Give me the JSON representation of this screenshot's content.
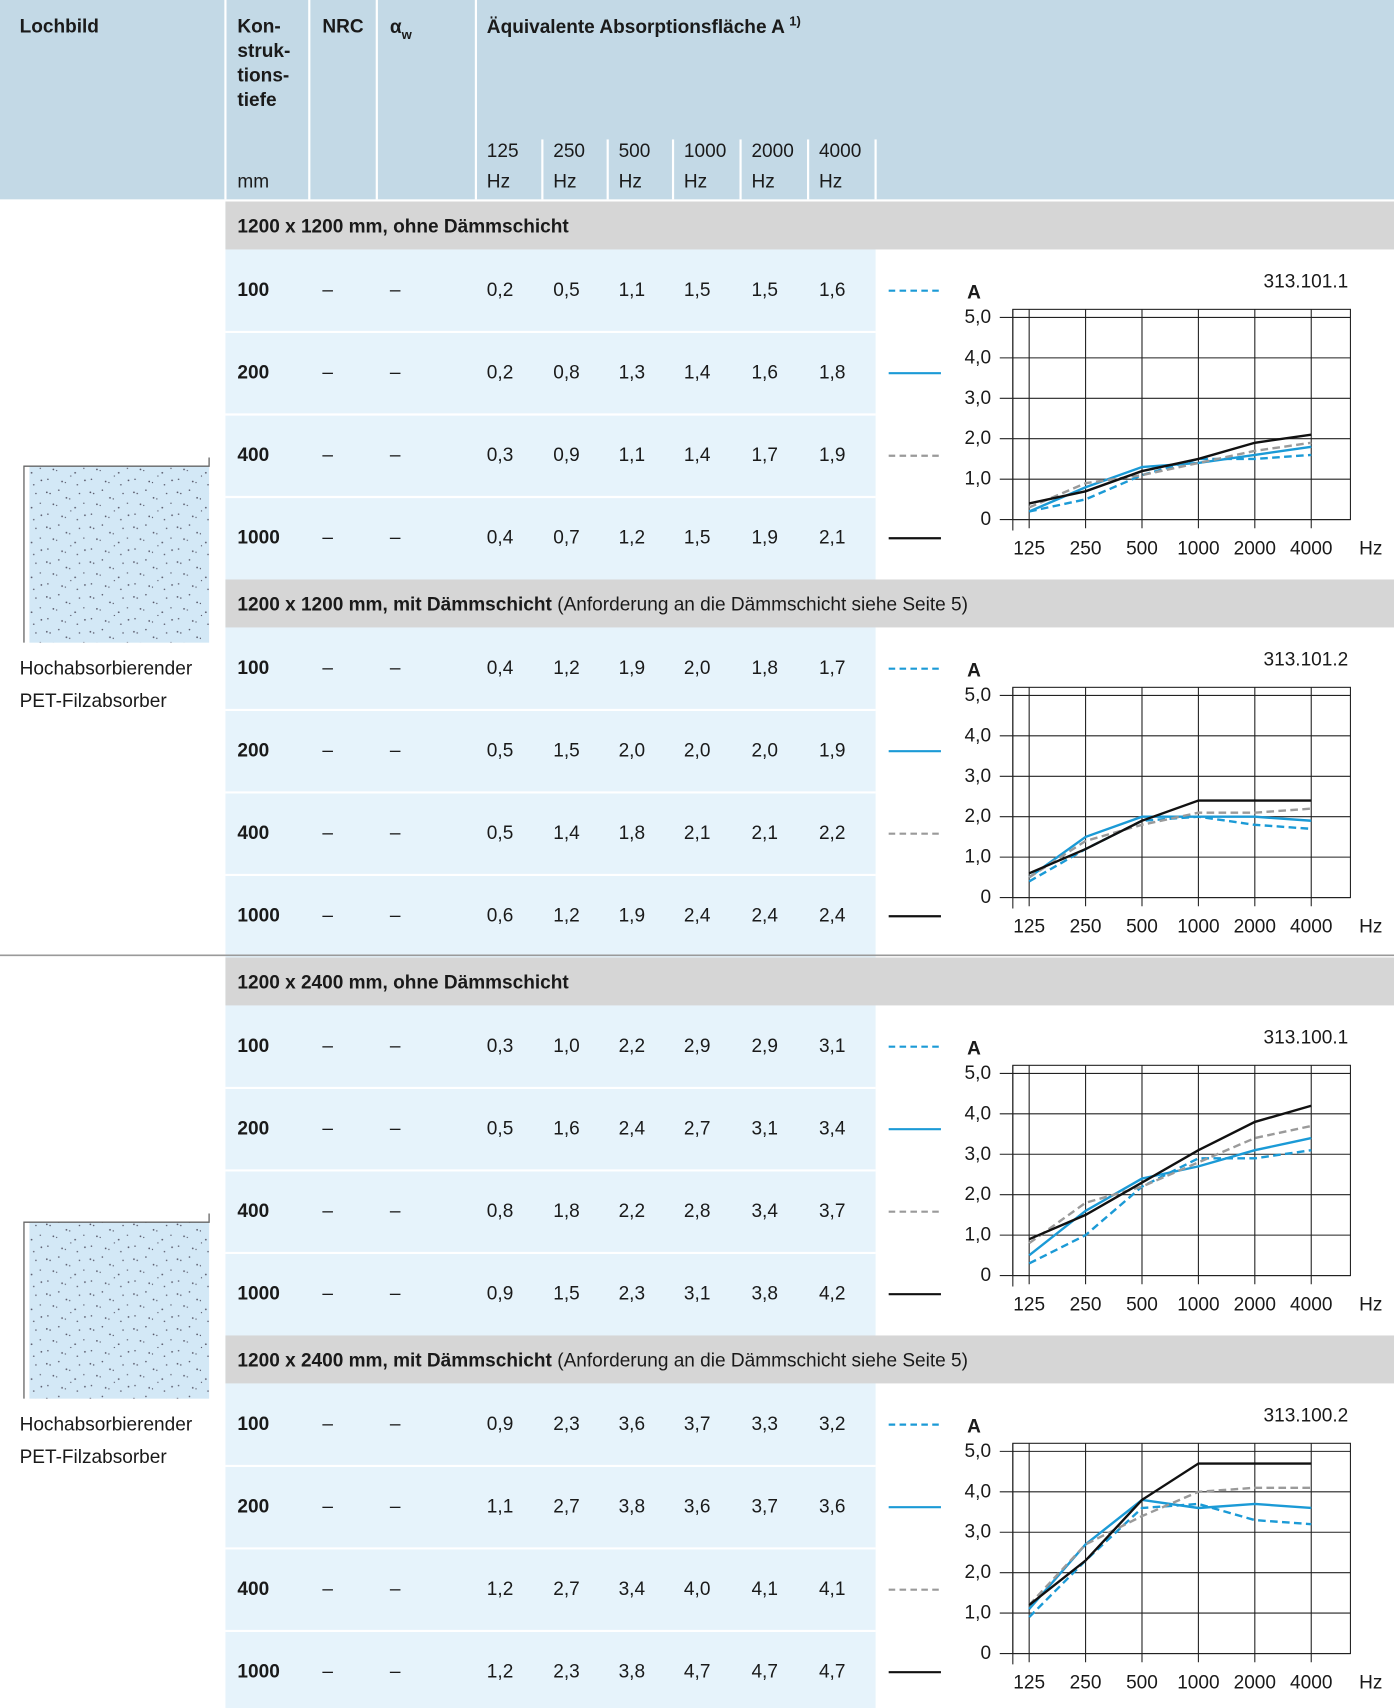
{
  "header": {
    "lochbild": "Lochbild",
    "konstruktionstiefe": [
      "Kon-",
      "struk-",
      "tions-",
      "tiefe"
    ],
    "unit": "mm",
    "nrc": "NRC",
    "alpha": "α",
    "alpha_sub": "w",
    "absorption": "Äquivalente Absorptionsfläche A",
    "absorption_note": "1)",
    "frequencies": [
      [
        "125",
        "Hz"
      ],
      [
        "250",
        "Hz"
      ],
      [
        "500",
        "Hz"
      ],
      [
        "1000",
        "Hz"
      ],
      [
        "2000",
        "Hz"
      ],
      [
        "4000",
        "Hz"
      ]
    ]
  },
  "series_styles": [
    {
      "color": "#1b9ad6",
      "dashed": true
    },
    {
      "color": "#1b9ad6",
      "dashed": false
    },
    {
      "color": "#9a9a9a",
      "dashed": true
    },
    {
      "color": "#111111",
      "dashed": false
    }
  ],
  "groups": [
    {
      "caption": [
        "Hochabsorbierender",
        "PET-Filzabsorber"
      ],
      "sections": [
        {
          "title": "1200 x 1200 mm, ohne Dämmschicht",
          "rows": [
            {
              "depth": 100,
              "nrc": "–",
              "alpha": "–",
              "values": [
                {
                  "value": 0.2,
                  "label": "0,2"
                },
                {
                  "value": 0.5,
                  "label": "0,5"
                },
                {
                  "value": 1.1,
                  "label": "1,1"
                },
                {
                  "value": 1.5,
                  "label": "1,5"
                },
                {
                  "value": 1.5,
                  "label": "1,5"
                },
                {
                  "value": 1.6,
                  "label": "1,6"
                }
              ]
            },
            {
              "depth": 200,
              "nrc": "–",
              "alpha": "–",
              "values": [
                {
                  "value": 0.2,
                  "label": "0,2"
                },
                {
                  "value": 0.8,
                  "label": "0,8"
                },
                {
                  "value": 1.3,
                  "label": "1,3"
                },
                {
                  "value": 1.4,
                  "label": "1,4"
                },
                {
                  "value": 1.6,
                  "label": "1,6"
                },
                {
                  "value": 1.8,
                  "label": "1,8"
                }
              ]
            },
            {
              "depth": 400,
              "nrc": "–",
              "alpha": "–",
              "values": [
                {
                  "value": 0.3,
                  "label": "0,3"
                },
                {
                  "value": 0.9,
                  "label": "0,9"
                },
                {
                  "value": 1.1,
                  "label": "1,1"
                },
                {
                  "value": 1.4,
                  "label": "1,4"
                },
                {
                  "value": 1.7,
                  "label": "1,7"
                },
                {
                  "value": 1.9,
                  "label": "1,9"
                }
              ]
            },
            {
              "depth": 1000,
              "nrc": "–",
              "alpha": "–",
              "values": [
                {
                  "value": 0.4,
                  "label": "0,4"
                },
                {
                  "value": 0.7,
                  "label": "0,7"
                },
                {
                  "value": 1.2,
                  "label": "1,2"
                },
                {
                  "value": 1.5,
                  "label": "1,5"
                },
                {
                  "value": 1.9,
                  "label": "1,9"
                },
                {
                  "value": 2.1,
                  "label": "2,1"
                }
              ]
            }
          ],
          "chart": {
            "type": "line",
            "id": "313.101.1",
            "y_label": "A",
            "x_unit": "Hz",
            "categories": [
              "125",
              "250",
              "500",
              "1000",
              "2000",
              "4000"
            ],
            "ylim": [
              0,
              5.2
            ],
            "yticks": [
              0,
              {
                "value": 1,
                "label": "1,0"
              },
              {
                "value": 2,
                "label": "2,0"
              },
              {
                "value": 3,
                "label": "3,0"
              },
              {
                "value": 4,
                "label": "4,0"
              },
              {
                "value": 5,
                "label": "5,0"
              }
            ],
            "grid": true
          }
        },
        {
          "title": "1200 x 1200 mm, mit Dämmschicht",
          "title_note": "(Anforderung an die Dämmschicht siehe Seite 5)",
          "rows": [
            {
              "depth": 100,
              "nrc": "–",
              "alpha": "–",
              "values": [
                {
                  "value": 0.4,
                  "label": "0,4"
                },
                {
                  "value": 1.2,
                  "label": "1,2"
                },
                {
                  "value": 1.9,
                  "label": "1,9"
                },
                {
                  "value": 2.0,
                  "label": "2,0"
                },
                {
                  "value": 1.8,
                  "label": "1,8"
                },
                {
                  "value": 1.7,
                  "label": "1,7"
                }
              ]
            },
            {
              "depth": 200,
              "nrc": "–",
              "alpha": "–",
              "values": [
                {
                  "value": 0.5,
                  "label": "0,5"
                },
                {
                  "value": 1.5,
                  "label": "1,5"
                },
                {
                  "value": 2.0,
                  "label": "2,0"
                },
                {
                  "value": 2.0,
                  "label": "2,0"
                },
                {
                  "value": 2.0,
                  "label": "2,0"
                },
                {
                  "value": 1.9,
                  "label": "1,9"
                }
              ]
            },
            {
              "depth": 400,
              "nrc": "–",
              "alpha": "–",
              "values": [
                {
                  "value": 0.5,
                  "label": "0,5"
                },
                {
                  "value": 1.4,
                  "label": "1,4"
                },
                {
                  "value": 1.8,
                  "label": "1,8"
                },
                {
                  "value": 2.1,
                  "label": "2,1"
                },
                {
                  "value": 2.1,
                  "label": "2,1"
                },
                {
                  "value": 2.2,
                  "label": "2,2"
                }
              ]
            },
            {
              "depth": 1000,
              "nrc": "–",
              "alpha": "–",
              "values": [
                {
                  "value": 0.6,
                  "label": "0,6"
                },
                {
                  "value": 1.2,
                  "label": "1,2"
                },
                {
                  "value": 1.9,
                  "label": "1,9"
                },
                {
                  "value": 2.4,
                  "label": "2,4"
                },
                {
                  "value": 2.4,
                  "label": "2,4"
                },
                {
                  "value": 2.4,
                  "label": "2,4"
                }
              ]
            }
          ],
          "chart": {
            "type": "line",
            "id": "313.101.2",
            "y_label": "A",
            "x_unit": "Hz",
            "categories": [
              "125",
              "250",
              "500",
              "1000",
              "2000",
              "4000"
            ],
            "ylim": [
              0,
              5.2
            ],
            "yticks": [
              0,
              {
                "value": 1,
                "label": "1,0"
              },
              {
                "value": 2,
                "label": "2,0"
              },
              {
                "value": 3,
                "label": "3,0"
              },
              {
                "value": 4,
                "label": "4,0"
              },
              {
                "value": 5,
                "label": "5,0"
              }
            ],
            "grid": true
          }
        }
      ]
    },
    {
      "caption": [
        "Hochabsorbierender",
        "PET-Filzabsorber"
      ],
      "sections": [
        {
          "title": "1200 x 2400 mm, ohne Dämmschicht",
          "rows": [
            {
              "depth": 100,
              "nrc": "–",
              "alpha": "–",
              "values": [
                {
                  "value": 0.3,
                  "label": "0,3"
                },
                {
                  "value": 1.0,
                  "label": "1,0"
                },
                {
                  "value": 2.2,
                  "label": "2,2"
                },
                {
                  "value": 2.9,
                  "label": "2,9"
                },
                {
                  "value": 2.9,
                  "label": "2,9"
                },
                {
                  "value": 3.1,
                  "label": "3,1"
                }
              ]
            },
            {
              "depth": 200,
              "nrc": "–",
              "alpha": "–",
              "values": [
                {
                  "value": 0.5,
                  "label": "0,5"
                },
                {
                  "value": 1.6,
                  "label": "1,6"
                },
                {
                  "value": 2.4,
                  "label": "2,4"
                },
                {
                  "value": 2.7,
                  "label": "2,7"
                },
                {
                  "value": 3.1,
                  "label": "3,1"
                },
                {
                  "value": 3.4,
                  "label": "3,4"
                }
              ]
            },
            {
              "depth": 400,
              "nrc": "–",
              "alpha": "–",
              "values": [
                {
                  "value": 0.8,
                  "label": "0,8"
                },
                {
                  "value": 1.8,
                  "label": "1,8"
                },
                {
                  "value": 2.2,
                  "label": "2,2"
                },
                {
                  "value": 2.8,
                  "label": "2,8"
                },
                {
                  "value": 3.4,
                  "label": "3,4"
                },
                {
                  "value": 3.7,
                  "label": "3,7"
                }
              ]
            },
            {
              "depth": 1000,
              "nrc": "–",
              "alpha": "–",
              "values": [
                {
                  "value": 0.9,
                  "label": "0,9"
                },
                {
                  "value": 1.5,
                  "label": "1,5"
                },
                {
                  "value": 2.3,
                  "label": "2,3"
                },
                {
                  "value": 3.1,
                  "label": "3,1"
                },
                {
                  "value": 3.8,
                  "label": "3,8"
                },
                {
                  "value": 4.2,
                  "label": "4,2"
                }
              ]
            }
          ],
          "chart": {
            "type": "line",
            "id": "313.100.1",
            "y_label": "A",
            "x_unit": "Hz",
            "categories": [
              "125",
              "250",
              "500",
              "1000",
              "2000",
              "4000"
            ],
            "ylim": [
              0,
              5.2
            ],
            "yticks": [
              0,
              {
                "value": 1,
                "label": "1,0"
              },
              {
                "value": 2,
                "label": "2,0"
              },
              {
                "value": 3,
                "label": "3,0"
              },
              {
                "value": 4,
                "label": "4,0"
              },
              {
                "value": 5,
                "label": "5,0"
              }
            ],
            "grid": true
          }
        },
        {
          "title": "1200 x 2400 mm, mit Dämmschicht",
          "title_note": "(Anforderung an die Dämmschicht siehe Seite 5)",
          "rows": [
            {
              "depth": 100,
              "nrc": "–",
              "alpha": "–",
              "values": [
                {
                  "value": 0.9,
                  "label": "0,9"
                },
                {
                  "value": 2.3,
                  "label": "2,3"
                },
                {
                  "value": 3.6,
                  "label": "3,6"
                },
                {
                  "value": 3.7,
                  "label": "3,7"
                },
                {
                  "value": 3.3,
                  "label": "3,3"
                },
                {
                  "value": 3.2,
                  "label": "3,2"
                }
              ]
            },
            {
              "depth": 200,
              "nrc": "–",
              "alpha": "–",
              "values": [
                {
                  "value": 1.1,
                  "label": "1,1"
                },
                {
                  "value": 2.7,
                  "label": "2,7"
                },
                {
                  "value": 3.8,
                  "label": "3,8"
                },
                {
                  "value": 3.6,
                  "label": "3,6"
                },
                {
                  "value": 3.7,
                  "label": "3,7"
                },
                {
                  "value": 3.6,
                  "label": "3,6"
                }
              ]
            },
            {
              "depth": 400,
              "nrc": "–",
              "alpha": "–",
              "values": [
                {
                  "value": 1.2,
                  "label": "1,2"
                },
                {
                  "value": 2.7,
                  "label": "2,7"
                },
                {
                  "value": 3.4,
                  "label": "3,4"
                },
                {
                  "value": 4.0,
                  "label": "4,0"
                },
                {
                  "value": 4.1,
                  "label": "4,1"
                },
                {
                  "value": 4.1,
                  "label": "4,1"
                }
              ]
            },
            {
              "depth": 1000,
              "nrc": "–",
              "alpha": "–",
              "values": [
                {
                  "value": 1.2,
                  "label": "1,2"
                },
                {
                  "value": 2.3,
                  "label": "2,3"
                },
                {
                  "value": 3.8,
                  "label": "3,8"
                },
                {
                  "value": 4.7,
                  "label": "4,7"
                },
                {
                  "value": 4.7,
                  "label": "4,7"
                },
                {
                  "value": 4.7,
                  "label": "4,7"
                }
              ]
            }
          ],
          "chart": {
            "type": "line",
            "id": "313.100.2",
            "y_label": "A",
            "x_unit": "Hz",
            "categories": [
              "125",
              "250",
              "500",
              "1000",
              "2000",
              "4000"
            ],
            "ylim": [
              0,
              5.2
            ],
            "yticks": [
              0,
              {
                "value": 1,
                "label": "1,0"
              },
              {
                "value": 2,
                "label": "2,0"
              },
              {
                "value": 3,
                "label": "3,0"
              },
              {
                "value": 4,
                "label": "4,0"
              },
              {
                "value": 5,
                "label": "5,0"
              }
            ],
            "grid": true
          }
        }
      ]
    }
  ]
}
